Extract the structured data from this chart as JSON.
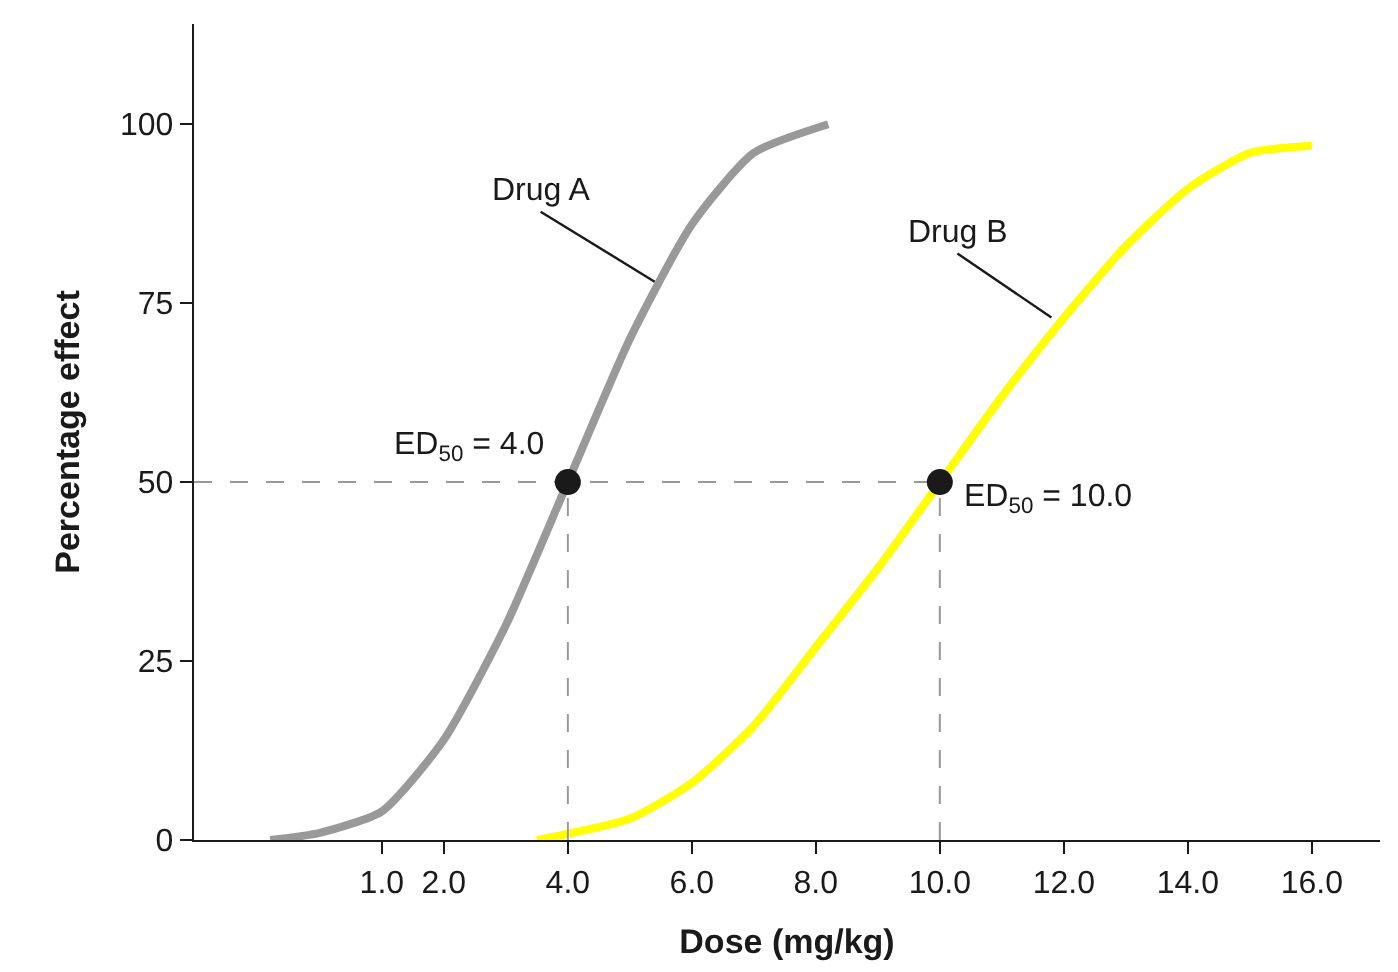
{
  "chart_data": {
    "type": "line",
    "xlabel": "Dose (mg/kg)",
    "ylabel": "Percentage effect",
    "xlim": [
      -2.03,
      17.1
    ],
    "ylim": [
      0,
      114
    ],
    "xticks": [
      {
        "value": 1,
        "label": "1.0"
      },
      {
        "value": 2,
        "label": "2.0"
      },
      {
        "value": 4,
        "label": "4.0"
      },
      {
        "value": 6,
        "label": "6.0"
      },
      {
        "value": 8,
        "label": "8.0"
      },
      {
        "value": 10,
        "label": "10.0"
      },
      {
        "value": 12,
        "label": "12.0"
      },
      {
        "value": 14,
        "label": "14.0"
      },
      {
        "value": 16,
        "label": "16.0"
      }
    ],
    "yticks": [
      0,
      25,
      50,
      75,
      100
    ],
    "marker": "none",
    "line_style": "solid",
    "series": [
      {
        "x": [
          -0.8,
          0,
          1,
          2,
          3,
          4,
          5,
          6,
          7,
          8.2
        ],
        "values": [
          0,
          1,
          4,
          14,
          30,
          50,
          70,
          86,
          96,
          100
        ],
        "color": "#999999"
      },
      {
        "x": [
          3.5,
          5,
          6,
          7,
          8,
          9,
          10,
          11,
          12,
          13,
          14,
          15,
          16
        ],
        "values": [
          0,
          3,
          8,
          16,
          27,
          38,
          50,
          62,
          73,
          83,
          91,
          96,
          97
        ],
        "color": "#ffff00"
      },
      {
        "x": [
          -2.03,
          10
        ],
        "values": [
          50,
          50
        ],
        "color": "#999999",
        "line_style": "dashed"
      },
      {
        "x": [
          4,
          4
        ],
        "values": [
          0,
          50
        ],
        "color": "#999999",
        "line_style": "dashed"
      },
      {
        "x": [
          10,
          10
        ],
        "values": [
          0,
          50
        ],
        "color": "#999999",
        "line_style": "dashed"
      },
      {
        "type": "scatter",
        "x": [
          4,
          10
        ],
        "values": [
          50,
          50
        ],
        "color": "#1a1a1a",
        "marker": "circle"
      }
    ],
    "annotations": [
      {
        "text": "Drug A",
        "x": 5.4,
        "y": 78
      },
      {
        "text": "Drug B",
        "x": 11.8,
        "y": 73
      },
      {
        "text": "ED$_{50}$ = 4.0",
        "x": 4,
        "y": 50
      },
      {
        "text": "ED$_{50}$ = 10.0",
        "x": 10,
        "y": 50
      }
    ]
  }
}
